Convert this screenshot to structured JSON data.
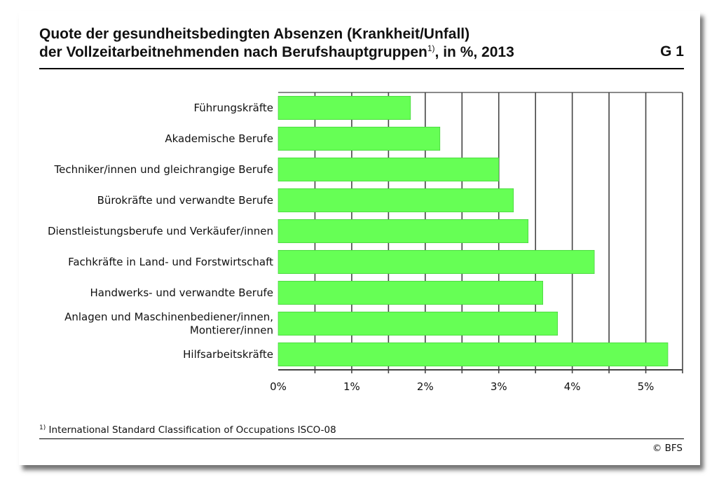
{
  "header": {
    "title_line1": "Quote der gesundheitsbedingten Absenzen (Krankheit/Unfall)",
    "title_line2_main": "der Vollzeitarbeitnehmenden nach Berufshauptgruppen",
    "title_line2_sup": "1)",
    "title_line2_tail": ", in %, 2013",
    "chart_code": "G 1"
  },
  "footer": {
    "footnote_marker": "1)",
    "footnote_text": "International Standard Classification of Occupations ISCO-08",
    "copyright": "© BFS"
  },
  "colors": {
    "bar": "#66ff55",
    "bar_stroke": "#3ec436",
    "grid": "#444444",
    "axis": "#444444"
  },
  "chart_data": {
    "type": "bar",
    "orientation": "horizontal",
    "categories": [
      [
        "Führungskräfte"
      ],
      [
        "Akademische Berufe"
      ],
      [
        "Techniker/innen und gleichrangige Berufe"
      ],
      [
        "Bürokräfte und verwandte Berufe"
      ],
      [
        "Dienstleistungsberufe und Verkäufer/innen"
      ],
      [
        "Fachkräfte in Land- und Forstwirtschaft"
      ],
      [
        "Handwerks- und verwandte Berufe"
      ],
      [
        "Anlagen und Maschinenbediener/innen,",
        "Montierer/innen"
      ],
      [
        "Hilfsarbeitskräfte"
      ]
    ],
    "values": [
      1.8,
      2.2,
      3.0,
      3.2,
      3.4,
      4.3,
      3.6,
      3.8,
      5.3
    ],
    "xlim": [
      0,
      5.5
    ],
    "x_ticks": [
      0,
      1,
      2,
      3,
      4,
      5
    ],
    "x_tick_labels": [
      "0%",
      "1%",
      "2%",
      "3%",
      "4%",
      "5%"
    ],
    "x_gridlines": [
      0.5,
      1,
      1.5,
      2,
      2.5,
      3,
      3.5,
      4,
      4.5,
      5,
      5.5
    ],
    "grid": true,
    "legend": "none"
  }
}
